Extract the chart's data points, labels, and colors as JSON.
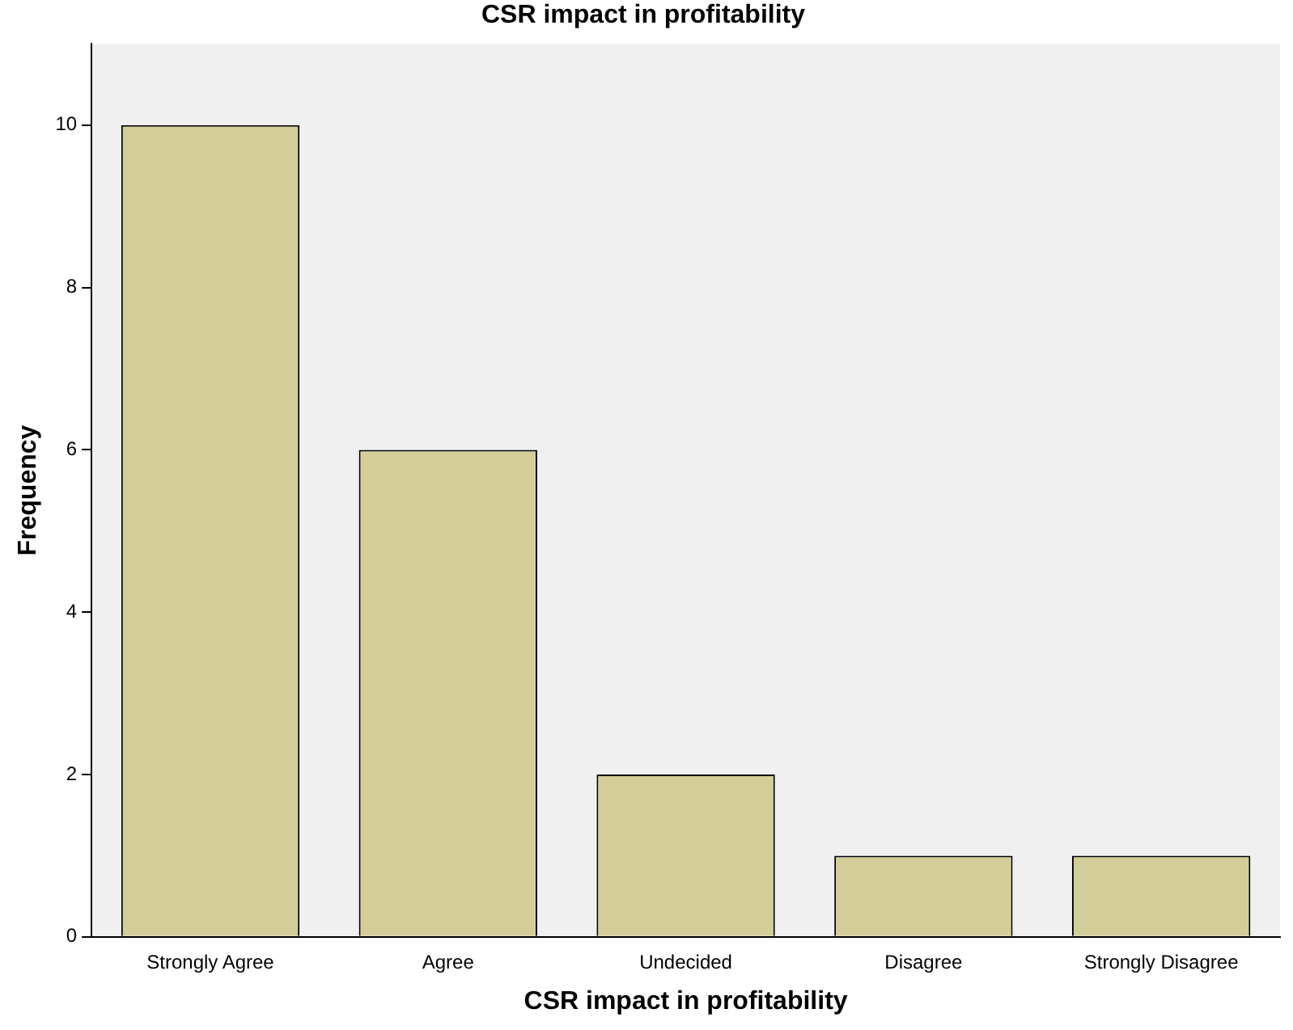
{
  "chart_data": {
    "type": "bar",
    "title": "CSR impact in profitability",
    "xlabel": "CSR impact in profitability",
    "ylabel": "Frequency",
    "categories": [
      "Strongly Agree",
      "Agree",
      "Undecided",
      "Disagree",
      "Strongly Disagree"
    ],
    "values": [
      10,
      6,
      2,
      1,
      1
    ],
    "color": "#d3ce98",
    "ylim": [
      0,
      11
    ],
    "yticks": [
      0,
      2,
      4,
      6,
      8,
      10
    ],
    "grid": false,
    "legend": false
  }
}
